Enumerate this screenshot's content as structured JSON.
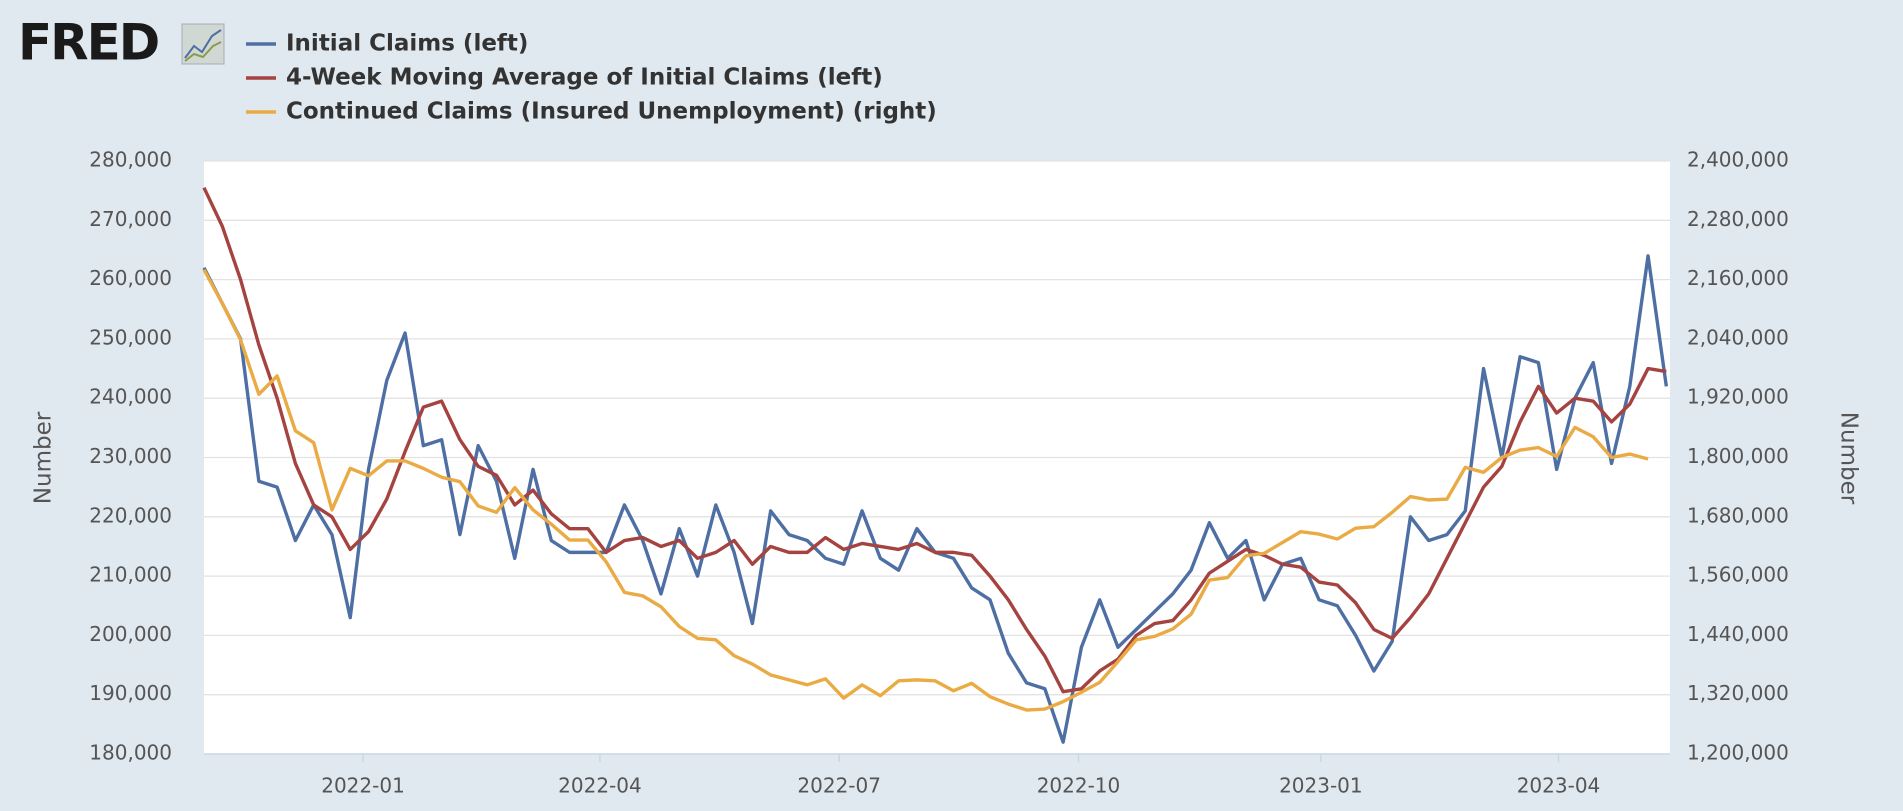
{
  "logo_text": "FRED",
  "chart_data": {
    "type": "line",
    "ylabel": "Number",
    "y2label": "Number",
    "xlim": [
      0,
      80.2
    ],
    "xticks": [
      {
        "value": 8.7,
        "label": "2022-01"
      },
      {
        "value": 21.66,
        "label": "2022-04"
      },
      {
        "value": 34.75,
        "label": "2022-07"
      },
      {
        "value": 47.84,
        "label": "2022-10"
      },
      {
        "value": 61.1,
        "label": "2023-01"
      },
      {
        "value": 74.1,
        "label": "2023-04"
      }
    ],
    "ylim": [
      180000,
      280000
    ],
    "yticks": [
      {
        "value": 180000,
        "label": "180,000"
      },
      {
        "value": 190000,
        "label": "190,000"
      },
      {
        "value": 200000,
        "label": "200,000"
      },
      {
        "value": 210000,
        "label": "210,000"
      },
      {
        "value": 220000,
        "label": "220,000"
      },
      {
        "value": 230000,
        "label": "230,000"
      },
      {
        "value": 240000,
        "label": "240,000"
      },
      {
        "value": 250000,
        "label": "250,000"
      },
      {
        "value": 260000,
        "label": "260,000"
      },
      {
        "value": 270000,
        "label": "270,000"
      },
      {
        "value": 280000,
        "label": "280,000"
      }
    ],
    "y2lim": [
      1200000,
      2400000
    ],
    "y2ticks": [
      {
        "value": 1200000,
        "label": "1,200,000"
      },
      {
        "value": 1320000,
        "label": "1,320,000"
      },
      {
        "value": 1440000,
        "label": "1,440,000"
      },
      {
        "value": 1560000,
        "label": "1,560,000"
      },
      {
        "value": 1680000,
        "label": "1,680,000"
      },
      {
        "value": 1800000,
        "label": "1,800,000"
      },
      {
        "value": 1920000,
        "label": "1,920,000"
      },
      {
        "value": 2040000,
        "label": "2,040,000"
      },
      {
        "value": 2160000,
        "label": "2,160,000"
      },
      {
        "value": 2280000,
        "label": "2,280,000"
      },
      {
        "value": 2400000,
        "label": "2,400,000"
      }
    ],
    "grid": true,
    "series": [
      {
        "name": "Initial Claims (left)",
        "color": "#4e6fa3",
        "values": [
          262000,
          256000,
          250000,
          226000,
          225000,
          216000,
          222000,
          217000,
          203000,
          228000,
          243000,
          251000,
          232000,
          233000,
          217000,
          232000,
          226000,
          213000,
          228000,
          216000,
          214000,
          214000,
          214000,
          222000,
          216000,
          207000,
          218000,
          210000,
          222000,
          214000,
          202000,
          221000,
          217000,
          216000,
          213000,
          212000,
          221000,
          213000,
          211000,
          218000,
          214000,
          213000,
          208000,
          206000,
          197000,
          192000,
          191000,
          182000,
          198000,
          206000,
          198000,
          201000,
          204000,
          207000,
          211000,
          219000,
          213000,
          216000,
          206000,
          212000,
          213000,
          206000,
          205000,
          200000,
          194000,
          199000,
          220000,
          216000,
          217000,
          221000,
          245000,
          230000,
          247000,
          246000,
          228000,
          240000,
          246000,
          229000,
          242000,
          264000,
          242000
        ]
      },
      {
        "name": "4-Week Moving Average of Initial Claims (left)",
        "color": "#a4433f",
        "values": [
          275500,
          269000,
          260000,
          249000,
          240000,
          229000,
          222000,
          220000,
          214500,
          217500,
          223000,
          231000,
          238500,
          239500,
          233000,
          228500,
          227000,
          222000,
          224500,
          220500,
          218000,
          218000,
          214000,
          216000,
          216500,
          215000,
          216000,
          213000,
          214000,
          216000,
          212000,
          215000,
          214000,
          214000,
          216500,
          214500,
          215500,
          215000,
          214500,
          215500,
          214000,
          214000,
          213500,
          210000,
          206000,
          201000,
          196500,
          190500,
          191000,
          194000,
          196000,
          200000,
          202000,
          202500,
          206000,
          210500,
          212500,
          214500,
          213500,
          212000,
          211500,
          209000,
          208500,
          205500,
          201000,
          199500,
          203000,
          207000,
          213000,
          219000,
          225000,
          228500,
          236000,
          242000,
          237500,
          240000,
          239500,
          236000,
          239000,
          245000,
          244500
        ]
      },
      {
        "name": "Continued Claims (Insured Unemployment) (right)",
        "color": "#eaab45",
        "axis": "y2",
        "values": [
          2180000,
          2112000,
          2038000,
          1928000,
          1965000,
          1854000,
          1830000,
          1694000,
          1778000,
          1763000,
          1793000,
          1793000,
          1778000,
          1760000,
          1751000,
          1702000,
          1689000,
          1739000,
          1694000,
          1665000,
          1633000,
          1633000,
          1589000,
          1527000,
          1520000,
          1498000,
          1458000,
          1434000,
          1431000,
          1399000,
          1382000,
          1360000,
          1350000,
          1340000,
          1352000,
          1313000,
          1340000,
          1318000,
          1348000,
          1350000,
          1348000,
          1328000,
          1343000,
          1316000,
          1301000,
          1289000,
          1291000,
          1306000,
          1325000,
          1345000,
          1387000,
          1431000,
          1438000,
          1453000,
          1483000,
          1552000,
          1557000,
          1601000,
          1606000,
          1628000,
          1650000,
          1645000,
          1635000,
          1657000,
          1660000,
          1689000,
          1721000,
          1714000,
          1716000,
          1780000,
          1770000,
          1800000,
          1815000,
          1820000,
          1802000,
          1861000,
          1842000,
          1800000,
          1807000,
          1797000,
          null
        ]
      }
    ]
  }
}
